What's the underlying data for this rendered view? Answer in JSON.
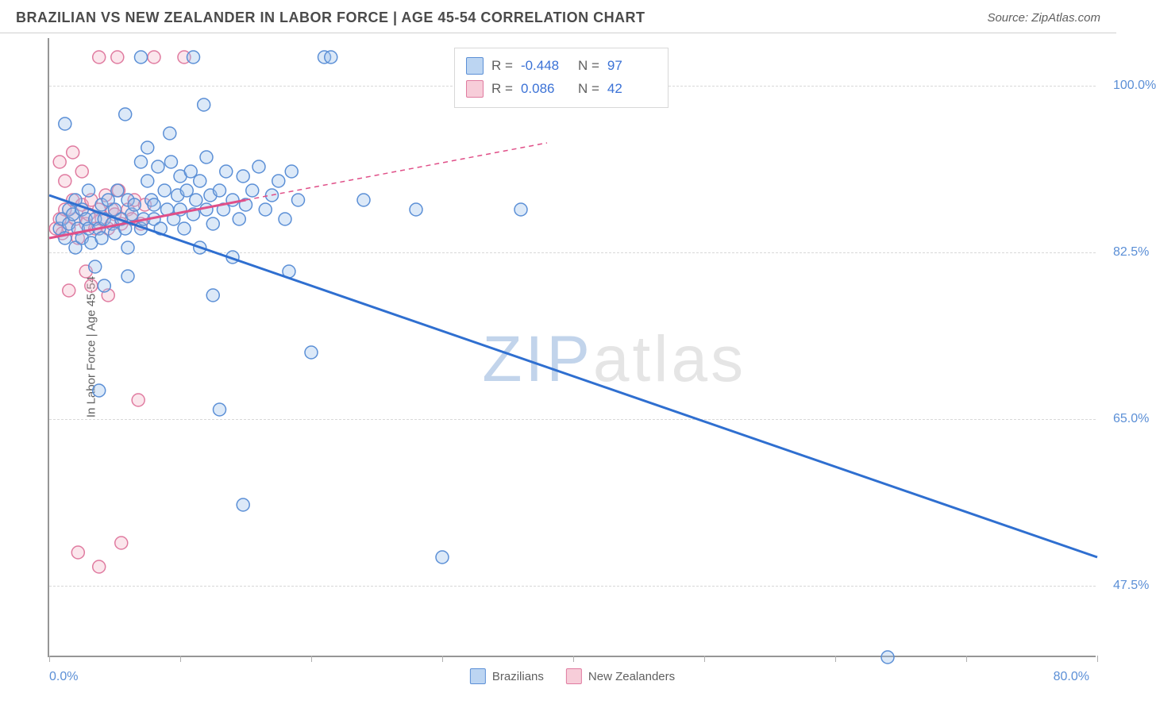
{
  "header": {
    "title": "BRAZILIAN VS NEW ZEALANDER IN LABOR FORCE | AGE 45-54 CORRELATION CHART",
    "source": "Source: ZipAtlas.com"
  },
  "chart": {
    "type": "scatter",
    "y_axis_title": "In Labor Force | Age 45-54",
    "xlim": [
      0,
      80
    ],
    "ylim": [
      40,
      105
    ],
    "y_ticks": [
      47.5,
      65.0,
      82.5,
      100.0
    ],
    "y_tick_labels": [
      "47.5%",
      "65.0%",
      "82.5%",
      "100.0%"
    ],
    "x_ticks": [
      0,
      10,
      20,
      30,
      40,
      50,
      60,
      70,
      80
    ],
    "x_axis_left_label": "0.0%",
    "x_axis_right_label": "80.0%",
    "background_color": "#ffffff",
    "grid_color": "#d8d8d8",
    "axis_color": "#969696",
    "tick_label_color": "#5b8fd6",
    "text_color": "#606060",
    "marker_radius": 8,
    "marker_stroke_width": 1.5,
    "marker_fill_opacity": 0.35,
    "trend_line_width": 3,
    "dashed_line_width": 1.5,
    "title_fontsize": 18,
    "label_fontsize": 15,
    "tick_fontsize": 16
  },
  "series": {
    "brazilians": {
      "label": "Brazilians",
      "fill": "#9cc0ea",
      "stroke": "#5b8fd6",
      "swatch_fill": "#bcd5f2",
      "swatch_border": "#5b8fd6",
      "trend_color": "#2f6fd0",
      "trend": {
        "x1": 0,
        "y1": 88.5,
        "x2": 80,
        "y2": 50.5
      },
      "points": [
        [
          0.8,
          85
        ],
        [
          1.0,
          86
        ],
        [
          1.2,
          84
        ],
        [
          1.5,
          87
        ],
        [
          1.5,
          85.5
        ],
        [
          1.8,
          86.5
        ],
        [
          2,
          83
        ],
        [
          2,
          88
        ],
        [
          2.2,
          85
        ],
        [
          2.5,
          84
        ],
        [
          2.5,
          87
        ],
        [
          2.8,
          86
        ],
        [
          3,
          85
        ],
        [
          3,
          89
        ],
        [
          3.2,
          83.5
        ],
        [
          3.5,
          86
        ],
        [
          3.8,
          85
        ],
        [
          4,
          87.5
        ],
        [
          4,
          84
        ],
        [
          4.2,
          86
        ],
        [
          4.5,
          88
        ],
        [
          4.8,
          85.5
        ],
        [
          5,
          87
        ],
        [
          5,
          84.5
        ],
        [
          5.2,
          89
        ],
        [
          5.5,
          86
        ],
        [
          5.8,
          85
        ],
        [
          6,
          88
        ],
        [
          6,
          83
        ],
        [
          6.3,
          86.5
        ],
        [
          6.5,
          87.5
        ],
        [
          7,
          85
        ],
        [
          7,
          92
        ],
        [
          7.2,
          86
        ],
        [
          7.5,
          90
        ],
        [
          7.8,
          88
        ],
        [
          8,
          86
        ],
        [
          8,
          87.5
        ],
        [
          8.3,
          91.5
        ],
        [
          8.5,
          85
        ],
        [
          8.8,
          89
        ],
        [
          9,
          87
        ],
        [
          9.3,
          92
        ],
        [
          9.5,
          86
        ],
        [
          9.8,
          88.5
        ],
        [
          10,
          87
        ],
        [
          10,
          90.5
        ],
        [
          10.3,
          85
        ],
        [
          10.5,
          89
        ],
        [
          10.8,
          91
        ],
        [
          11,
          86.5
        ],
        [
          11.2,
          88
        ],
        [
          11.5,
          90
        ],
        [
          12,
          87
        ],
        [
          12,
          92.5
        ],
        [
          12.3,
          88.5
        ],
        [
          12.5,
          85.5
        ],
        [
          13,
          89
        ],
        [
          13.3,
          87
        ],
        [
          13.5,
          91
        ],
        [
          14,
          88
        ],
        [
          14.5,
          86
        ],
        [
          14.8,
          90.5
        ],
        [
          15,
          87.5
        ],
        [
          15.5,
          89
        ],
        [
          16,
          91.5
        ],
        [
          16.5,
          87
        ],
        [
          17,
          88.5
        ],
        [
          17.5,
          90
        ],
        [
          18,
          86
        ],
        [
          18.5,
          91
        ],
        [
          19,
          88
        ],
        [
          11.5,
          83
        ],
        [
          3.5,
          81
        ],
        [
          6,
          80
        ],
        [
          4.2,
          79
        ],
        [
          7.5,
          93.5
        ],
        [
          9.2,
          95
        ],
        [
          5.8,
          97
        ],
        [
          1.2,
          96
        ],
        [
          7,
          103
        ],
        [
          21,
          103
        ],
        [
          21.5,
          103
        ],
        [
          11,
          103
        ],
        [
          14,
          82
        ],
        [
          18.3,
          80.5
        ],
        [
          20,
          72
        ],
        [
          28,
          87
        ],
        [
          3.8,
          68
        ],
        [
          36,
          87
        ],
        [
          14.8,
          56
        ],
        [
          13,
          66
        ],
        [
          24,
          88
        ],
        [
          30,
          50.5
        ],
        [
          64,
          40
        ],
        [
          12.5,
          78
        ],
        [
          11.8,
          98
        ]
      ]
    },
    "new_zealanders": {
      "label": "New Zealanders",
      "fill": "#f4b8c8",
      "stroke": "#e07ba0",
      "swatch_fill": "#f7cdd9",
      "swatch_border": "#e07ba0",
      "trend_color": "#e04f88",
      "trend_solid": {
        "x1": 0,
        "y1": 84,
        "x2": 15,
        "y2": 88
      },
      "trend_dashed": {
        "x1": 15,
        "y1": 88,
        "x2": 38,
        "y2": 94
      },
      "points": [
        [
          0.5,
          85
        ],
        [
          0.8,
          86
        ],
        [
          1,
          84.5
        ],
        [
          1.2,
          87
        ],
        [
          1.5,
          85
        ],
        [
          1.8,
          88
        ],
        [
          2,
          86
        ],
        [
          2.2,
          84
        ],
        [
          2.5,
          87.5
        ],
        [
          2.8,
          85.5
        ],
        [
          3,
          86.5
        ],
        [
          3.2,
          88
        ],
        [
          3.5,
          85
        ],
        [
          3.8,
          87
        ],
        [
          4,
          86
        ],
        [
          4.3,
          88.5
        ],
        [
          4.5,
          85
        ],
        [
          4.8,
          87
        ],
        [
          5,
          86.5
        ],
        [
          5.3,
          89
        ],
        [
          5.5,
          85.5
        ],
        [
          6,
          87
        ],
        [
          6.3,
          86
        ],
        [
          6.5,
          88
        ],
        [
          7,
          85.5
        ],
        [
          7.3,
          87.5
        ],
        [
          1.2,
          90
        ],
        [
          2.5,
          91
        ],
        [
          1.8,
          93
        ],
        [
          0.8,
          92
        ],
        [
          3.2,
          79
        ],
        [
          2.8,
          80.5
        ],
        [
          4.5,
          78
        ],
        [
          1.5,
          78.5
        ],
        [
          6.8,
          67
        ],
        [
          5.5,
          52
        ],
        [
          3.8,
          49.5
        ],
        [
          2.2,
          51
        ],
        [
          8,
          103
        ],
        [
          10.3,
          103
        ],
        [
          3.8,
          103
        ],
        [
          5.2,
          103
        ]
      ]
    }
  },
  "stats_box": {
    "rows": [
      {
        "swatch_fill": "#bcd5f2",
        "swatch_border": "#5b8fd6",
        "r_label": "R =",
        "r_value": "-0.448",
        "n_label": "N =",
        "n_value": "97"
      },
      {
        "swatch_fill": "#f7cdd9",
        "swatch_border": "#e07ba0",
        "r_label": "R =",
        "r_value": "0.086",
        "n_label": "N =",
        "n_value": "42"
      }
    ]
  },
  "watermark": {
    "a": "ZIP",
    "b": "atlas"
  },
  "legend": {
    "items": [
      {
        "label": "Brazilians",
        "fill": "#bcd5f2",
        "border": "#5b8fd6"
      },
      {
        "label": "New Zealanders",
        "fill": "#f7cdd9",
        "border": "#e07ba0"
      }
    ]
  }
}
